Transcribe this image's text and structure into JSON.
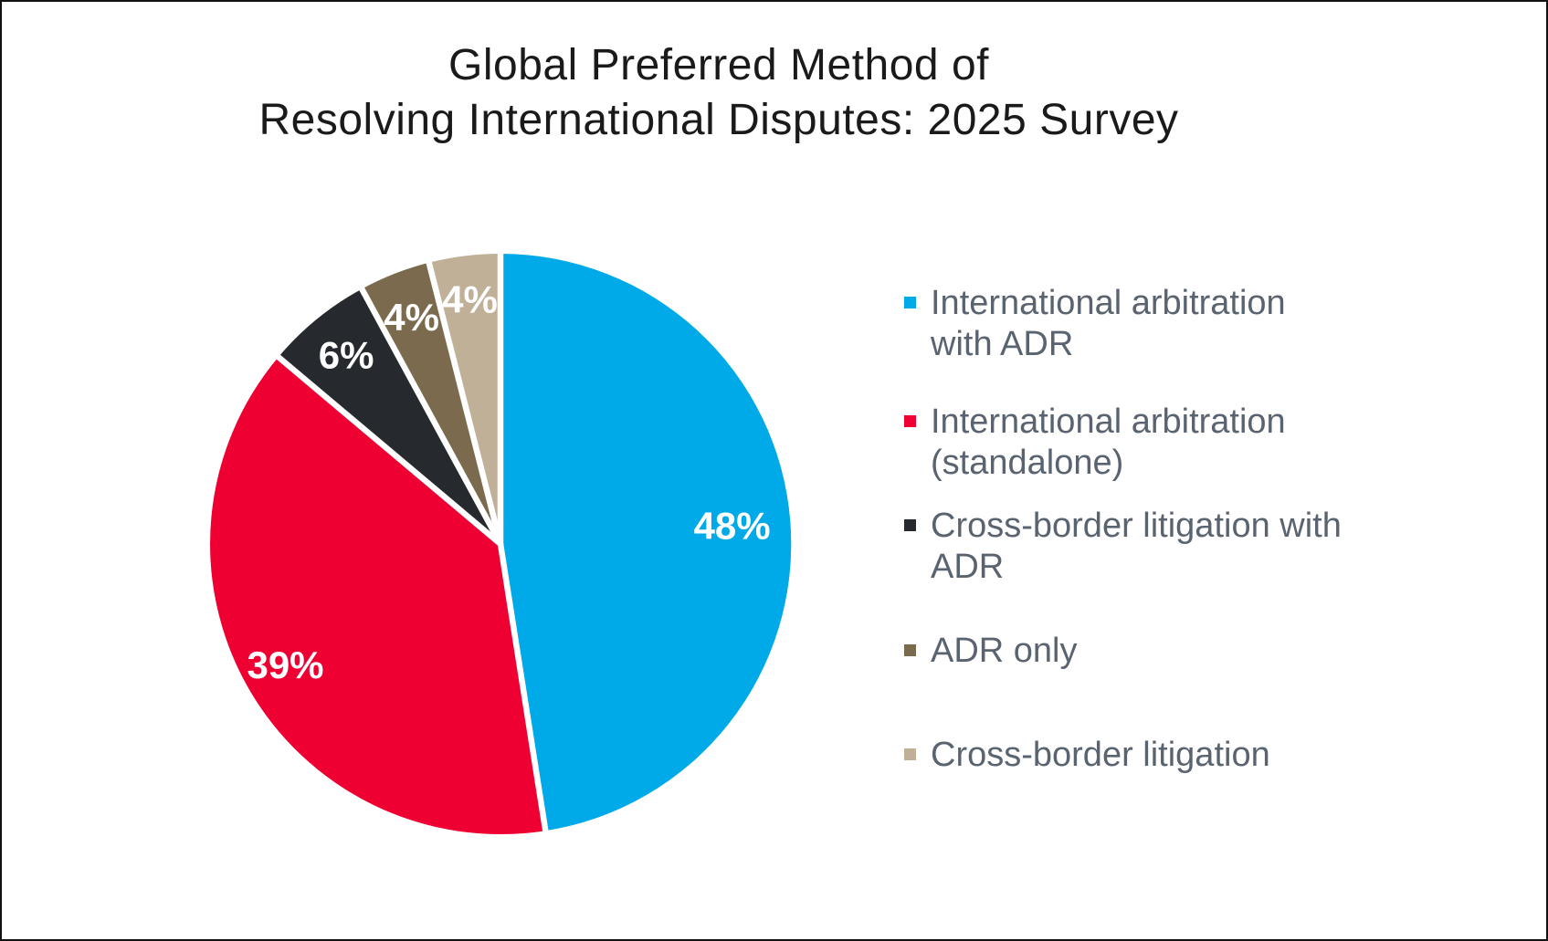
{
  "title": {
    "lines": [
      "Global Preferred Method of",
      "Resolving International Disputes: 2025 Survey"
    ]
  },
  "chart_data": {
    "type": "pie",
    "title": "Global Preferred Method of Resolving International Disputes: 2025 Survey",
    "start_angle_deg": 0,
    "direction": "clockwise",
    "legend_position": "right",
    "data_label_color": "#FFFFFF",
    "slices": [
      {
        "label": "International arbitration with ADR",
        "value": 48,
        "display": "48%",
        "color": "#00A9E8"
      },
      {
        "label": "International arbitration (standalone)",
        "value": 39,
        "display": "39%",
        "color": "#EE0032"
      },
      {
        "label": "Cross-border litigation with ADR",
        "value": 6,
        "display": "6%",
        "color": "#26292E"
      },
      {
        "label": "ADR only",
        "value": 4,
        "display": "4%",
        "color": "#7C6A4E"
      },
      {
        "label": "Cross-border litigation",
        "value": 4,
        "display": "4%",
        "color": "#C0B098"
      }
    ]
  },
  "legend": {
    "text_color": "#5A6470",
    "items": [
      {
        "lines": [
          "International arbitration",
          "with ADR"
        ],
        "color": "#00A9E8"
      },
      {
        "lines": [
          "International arbitration",
          "(standalone)"
        ],
        "color": "#EE0032"
      },
      {
        "lines": [
          "Cross-border litigation with",
          "ADR"
        ],
        "color": "#26292E"
      },
      {
        "lines": [
          "ADR only"
        ],
        "color": "#7C6A4E"
      },
      {
        "lines": [
          "Cross-border litigation"
        ],
        "color": "#C0B098"
      }
    ]
  }
}
